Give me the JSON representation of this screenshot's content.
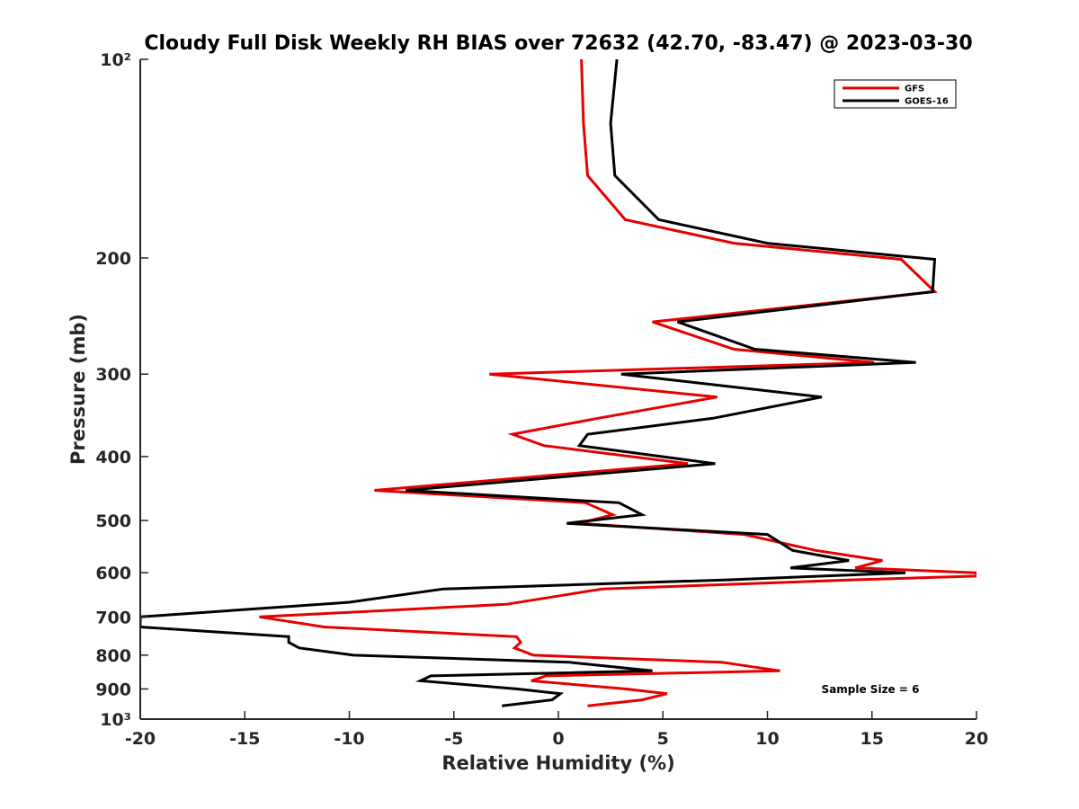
{
  "chart_data": {
    "type": "line",
    "title": "Cloudy Full Disk Weekly RH BIAS over 72632 (42.70, -83.47) @ 2023-03-30",
    "xlabel": "Relative Humidity (%)",
    "ylabel": "Pressure (mb)",
    "xlim": [
      -20,
      20
    ],
    "ylim": [
      100,
      1000
    ],
    "yscale": "log",
    "y_reversed": true,
    "grid": false,
    "legend_position": "top-right",
    "x_ticks": [
      -20,
      -15,
      -10,
      -5,
      0,
      5,
      10,
      15,
      20
    ],
    "x_tick_labels": [
      "-20",
      "-15",
      "-10",
      "-5",
      "0",
      "5",
      "10",
      "15",
      "20"
    ],
    "y_ticks": [
      100,
      200,
      300,
      400,
      500,
      600,
      700,
      800,
      900,
      1000
    ],
    "y_tick_labels": [
      "10²",
      "200",
      "300",
      "400",
      "500",
      "600",
      "700",
      "800",
      "900",
      "10³"
    ],
    "annotation": "Sample Size = 6",
    "series": [
      {
        "name": "GFS",
        "color": "#e60000",
        "points": [
          [
            1.1,
            100
          ],
          [
            1.2,
            125
          ],
          [
            1.4,
            150
          ],
          [
            3.2,
            175
          ],
          [
            8.4,
            190
          ],
          [
            16.4,
            201
          ],
          [
            18.0,
            225
          ],
          [
            4.5,
            250
          ],
          [
            8.4,
            275
          ],
          [
            15.1,
            288
          ],
          [
            -3.3,
            300
          ],
          [
            7.6,
            325
          ],
          [
            1.9,
            350
          ],
          [
            -2.2,
            370
          ],
          [
            -0.7,
            385
          ],
          [
            6.2,
            410
          ],
          [
            -8.8,
            450
          ],
          [
            1.3,
            470
          ],
          [
            2.6,
            490
          ],
          [
            1.0,
            505
          ],
          [
            8.9,
            525
          ],
          [
            12.3,
            555
          ],
          [
            15.5,
            575
          ],
          [
            14.2,
            590
          ],
          [
            20.0,
            600
          ],
          [
            20.0,
            607
          ],
          [
            14.2,
            615
          ],
          [
            2.1,
            635
          ],
          [
            -2.5,
            670
          ],
          [
            -14.3,
            700
          ],
          [
            -11.2,
            725
          ],
          [
            -2.0,
            750
          ],
          [
            -1.8,
            765
          ],
          [
            -2.1,
            780
          ],
          [
            -1.2,
            800
          ],
          [
            7.8,
            820
          ],
          [
            10.6,
            845
          ],
          [
            -0.6,
            860
          ],
          [
            -1.3,
            875
          ],
          [
            3.2,
            900
          ],
          [
            5.2,
            915
          ],
          [
            4.0,
            935
          ],
          [
            1.4,
            955
          ]
        ]
      },
      {
        "name": "GOES-16",
        "color": "#000000",
        "points": [
          [
            2.8,
            100
          ],
          [
            2.5,
            125
          ],
          [
            2.7,
            150
          ],
          [
            4.8,
            175
          ],
          [
            10.0,
            190
          ],
          [
            18.0,
            201
          ],
          [
            17.9,
            225
          ],
          [
            5.7,
            250
          ],
          [
            9.4,
            275
          ],
          [
            17.1,
            288
          ],
          [
            3.0,
            300
          ],
          [
            12.6,
            325
          ],
          [
            7.4,
            350
          ],
          [
            1.4,
            370
          ],
          [
            1.0,
            385
          ],
          [
            7.5,
            410
          ],
          [
            -7.3,
            450
          ],
          [
            2.9,
            470
          ],
          [
            4.0,
            490
          ],
          [
            0.4,
            505
          ],
          [
            10.0,
            525
          ],
          [
            11.2,
            555
          ],
          [
            13.9,
            575
          ],
          [
            11.1,
            590
          ],
          [
            16.6,
            600
          ],
          [
            8.2,
            615
          ],
          [
            -5.5,
            635
          ],
          [
            -10.0,
            665
          ],
          [
            -20.0,
            700
          ],
          [
            -20.0,
            725
          ],
          [
            -12.9,
            750
          ],
          [
            -12.9,
            765
          ],
          [
            -12.4,
            780
          ],
          [
            -9.8,
            800
          ],
          [
            0.5,
            820
          ],
          [
            4.5,
            845
          ],
          [
            -6.1,
            860
          ],
          [
            -6.6,
            875
          ],
          [
            -2.0,
            900
          ],
          [
            0.1,
            915
          ],
          [
            -0.3,
            935
          ],
          [
            -2.7,
            955
          ]
        ]
      }
    ]
  }
}
